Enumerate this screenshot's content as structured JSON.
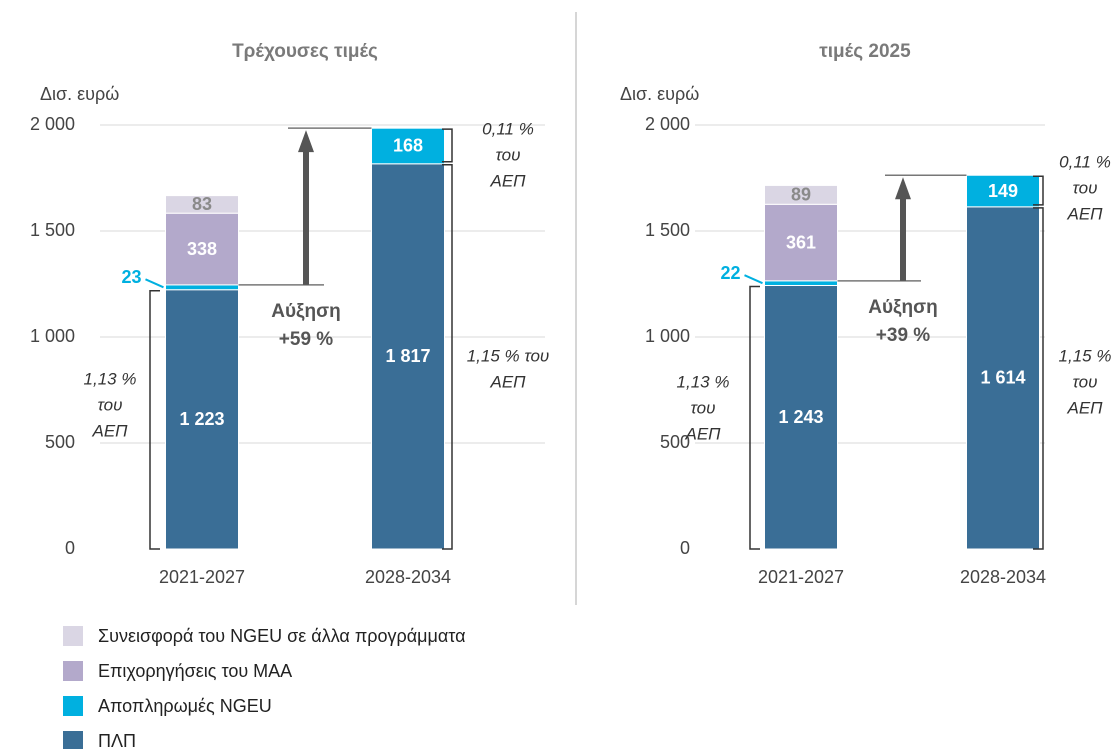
{
  "chart_data": [
    {
      "type": "bar",
      "stacked": true,
      "title": "Τρέχουσες τιμές",
      "y_label": "Δισ. ευρώ",
      "categories": [
        "2021-2027",
        "2028-2034"
      ],
      "ylim": [
        0,
        2000
      ],
      "yticks": [
        0,
        500,
        {
          "value": 1000,
          "label": "1 000"
        },
        {
          "value": 1500,
          "label": "1 500"
        },
        {
          "value": 2000,
          "label": "2 000"
        }
      ],
      "grid": true,
      "series": [
        {
          "name": "ΠΛΠ",
          "color": "#3a6e96",
          "label_color": "#ffffff",
          "values": [
            1223,
            1817
          ],
          "value_labels": [
            "1 223",
            "1 817"
          ]
        },
        {
          "name": "Αποπληρωμές NGEU",
          "color": "#00b0e0",
          "label_color": "#ffffff",
          "values": [
            23,
            168
          ]
        },
        {
          "name": "Επιχορηγήσεις του ΜΑΑ",
          "color": "#b3a9cb",
          "label_color": "#ffffff",
          "values": [
            338,
            null
          ]
        },
        {
          "name": "Συνεισφορά του NGEU σε άλλα προγράμματα",
          "color": "#dad6e4",
          "label_color": "#8a8a8a",
          "values": [
            83,
            null
          ]
        }
      ],
      "annotations": {
        "increase": [
          "Αύξηση",
          "+59 %"
        ],
        "share_left": [
          "1,13 %",
          "του",
          "ΑΕΠ"
        ],
        "share_right": [
          "1,15 % του",
          "ΑΕΠ"
        ],
        "share_top": [
          "0,11 %",
          "του",
          "ΑΕΠ"
        ]
      }
    },
    {
      "type": "bar",
      "stacked": true,
      "title": "τιμές 2025",
      "y_label": "Δισ. ευρώ",
      "categories": [
        "2021-2027",
        "2028-2034"
      ],
      "ylim": [
        0,
        2000
      ],
      "yticks": [
        0,
        500,
        {
          "value": 1000,
          "label": "1 000"
        },
        {
          "value": 1500,
          "label": "1 500"
        },
        {
          "value": 2000,
          "label": "2 000"
        }
      ],
      "grid": true,
      "series": [
        {
          "color": "#3a6e96",
          "label_color": "#ffffff",
          "values": [
            1243,
            1614
          ],
          "value_labels": [
            "1 243",
            "1 614"
          ]
        },
        {
          "color": "#00b0e0",
          "label_color": "#ffffff",
          "values": [
            22,
            149
          ]
        },
        {
          "color": "#b3a9cb",
          "label_color": "#ffffff",
          "values": [
            361,
            null
          ]
        },
        {
          "color": "#dad6e4",
          "label_color": "#8a8a8a",
          "values": [
            89,
            null
          ]
        }
      ],
      "annotations": {
        "increase": [
          "Αύξηση",
          "+39 %"
        ],
        "share_left": [
          "1,13 %",
          "του",
          "ΑΕΠ"
        ],
        "share_right": [
          "1,15 %",
          "του",
          "ΑΕΠ"
        ],
        "share_top": [
          "0,11 %",
          "του",
          "ΑΕΠ"
        ]
      }
    }
  ]
}
